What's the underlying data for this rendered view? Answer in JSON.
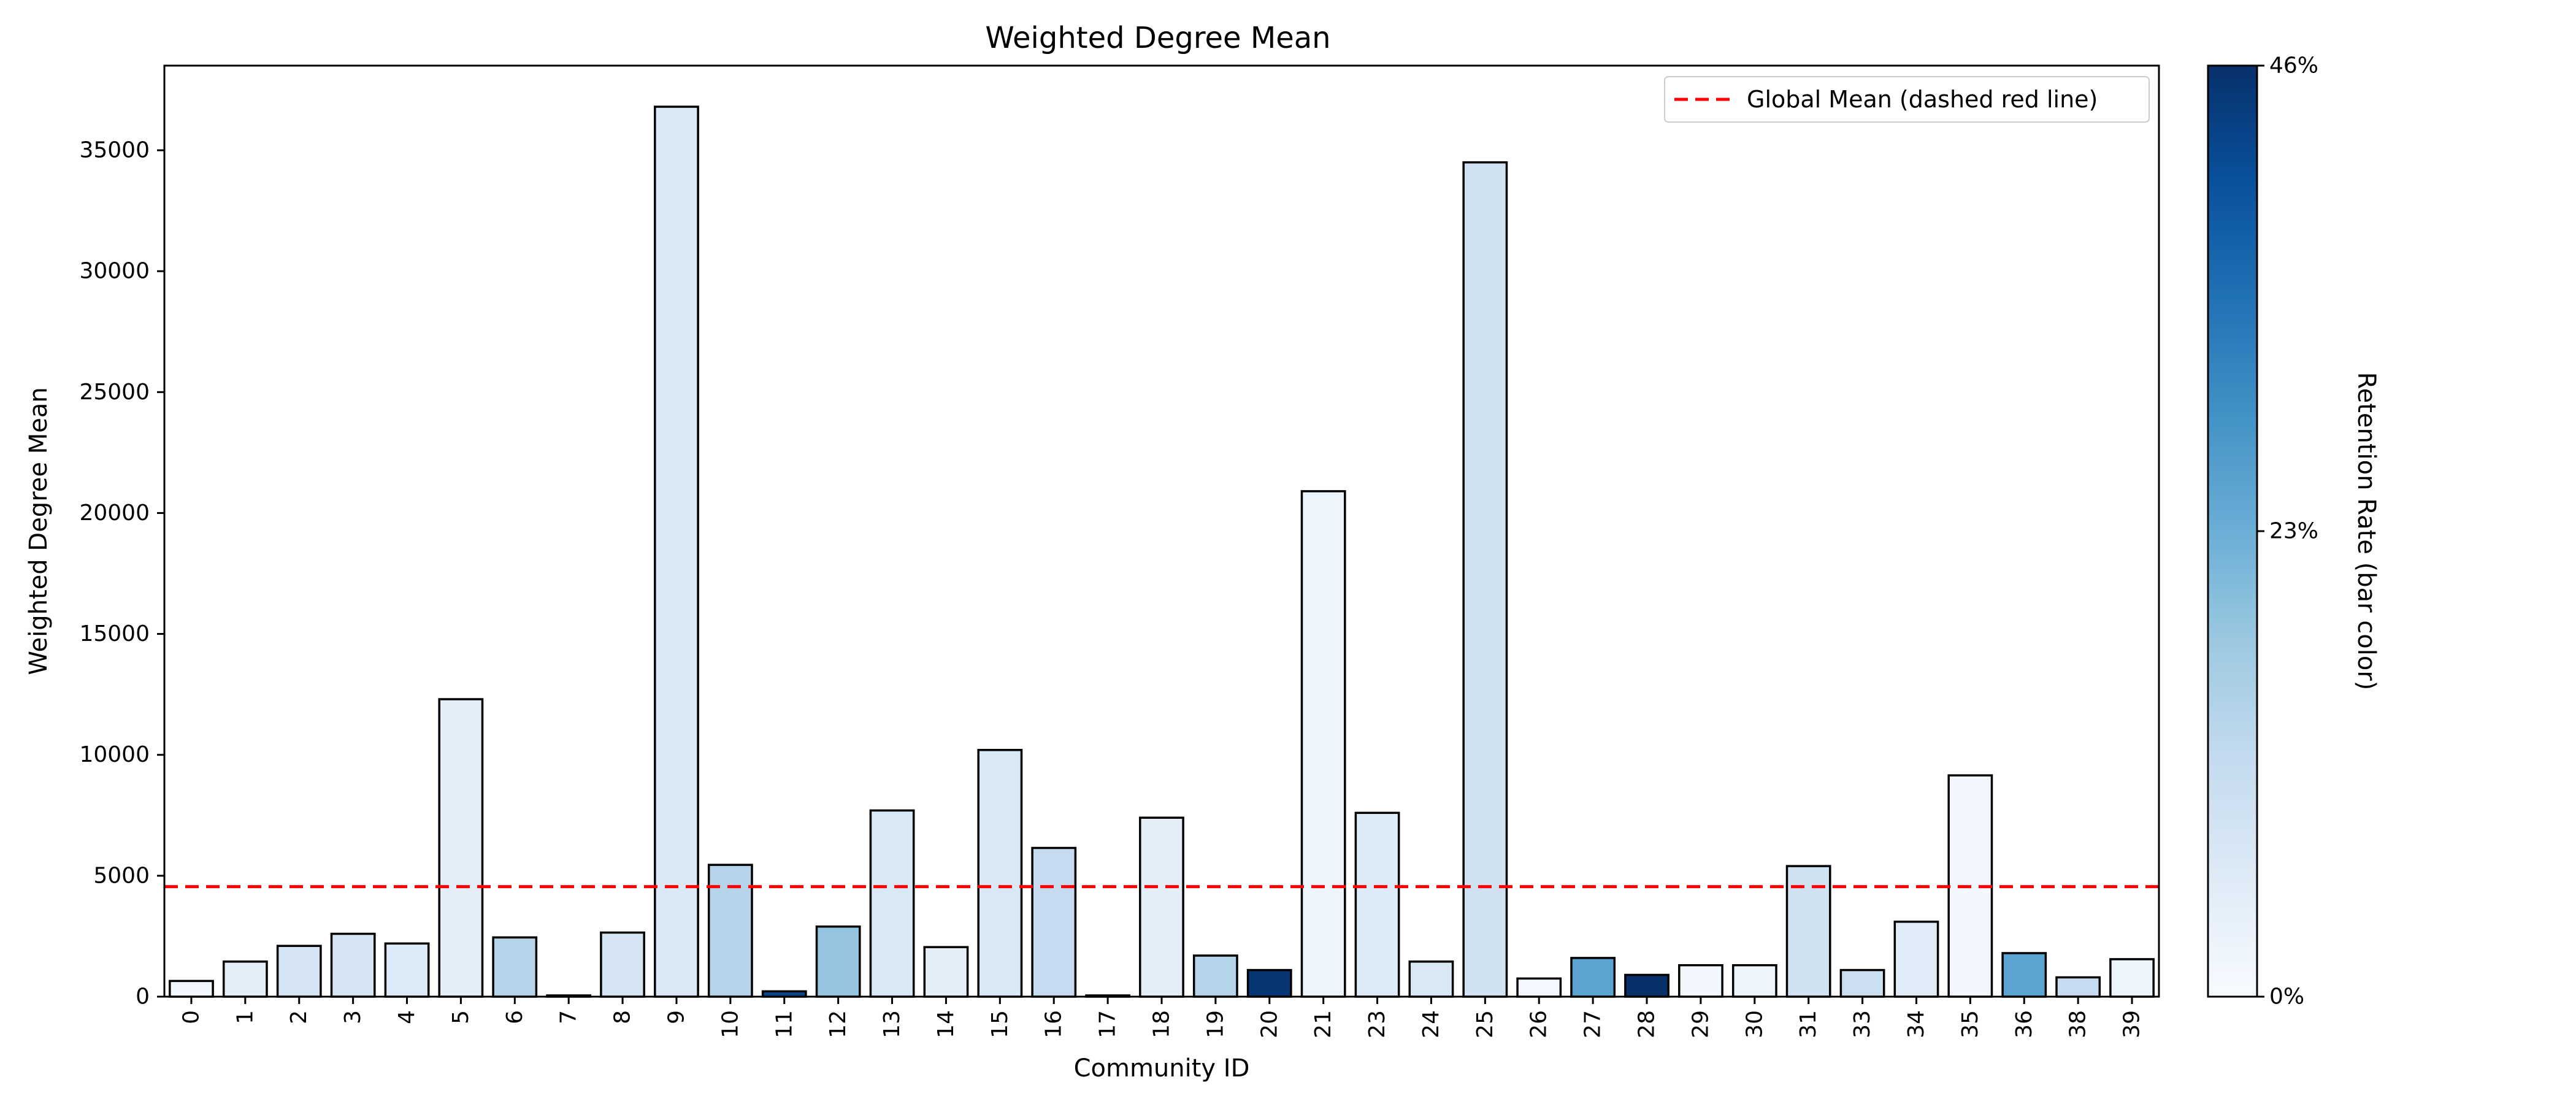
{
  "chart_data": {
    "type": "bar",
    "title": "Weighted Degree Mean",
    "xlabel": "Community ID",
    "ylabel": "Weighted Degree Mean",
    "ylim": [
      0,
      38500
    ],
    "yticks": [
      0,
      5000,
      10000,
      15000,
      20000,
      25000,
      30000,
      35000
    ],
    "grid": false,
    "categories": [
      "0",
      "1",
      "2",
      "3",
      "4",
      "5",
      "6",
      "7",
      "8",
      "9",
      "10",
      "11",
      "12",
      "13",
      "14",
      "15",
      "16",
      "17",
      "18",
      "19",
      "20",
      "21",
      "23",
      "24",
      "25",
      "26",
      "27",
      "28",
      "29",
      "30",
      "31",
      "33",
      "34",
      "35",
      "36",
      "38",
      "39"
    ],
    "values": [
      650,
      1450,
      2100,
      2600,
      2200,
      12300,
      2450,
      50,
      2650,
      36800,
      5450,
      220,
      2900,
      7700,
      2050,
      10200,
      6150,
      50,
      7400,
      1700,
      1100,
      20900,
      7600,
      1450,
      34500,
      750,
      1600,
      900,
      1300,
      1300,
      5400,
      1100,
      3100,
      9150,
      1800,
      800,
      1550
    ],
    "color_values": [
      0.03,
      0.1,
      0.17,
      0.17,
      0.13,
      0.1,
      0.3,
      0.17,
      0.17,
      0.14,
      0.3,
      0.92,
      0.4,
      0.15,
      0.1,
      0.15,
      0.25,
      0.1,
      0.1,
      0.3,
      0.98,
      0.05,
      0.13,
      0.15,
      0.2,
      0.02,
      0.55,
      1.0,
      0.03,
      0.05,
      0.2,
      0.22,
      0.12,
      0.03,
      0.55,
      0.25,
      0.05
    ],
    "reference_line": {
      "value": 4550,
      "label": "Global Mean (dashed red line)",
      "color": "#ff0000",
      "style": "dashed"
    },
    "legend": {
      "location": "top-right",
      "entries": [
        "Global Mean (dashed red line)"
      ]
    },
    "colorbar": {
      "label": "Retention Rate (bar color)",
      "colormap": "Blues",
      "ticks": [
        "0%",
        "23%",
        "46%"
      ],
      "range": [
        0,
        46
      ]
    }
  }
}
